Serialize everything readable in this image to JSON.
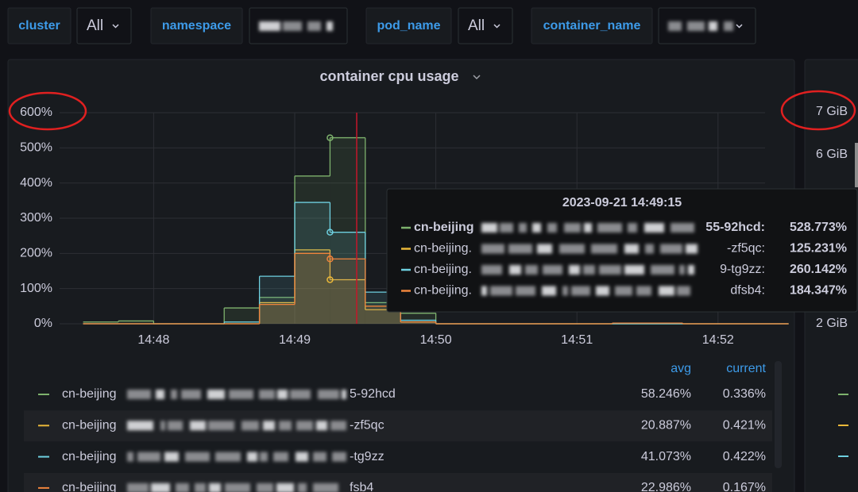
{
  "variables": [
    {
      "label": "cluster",
      "value": "All"
    },
    {
      "label": "namespace"
    },
    {
      "label": "pod_name",
      "value": "All"
    },
    {
      "label": "container_name"
    }
  ],
  "panel": {
    "title": "container cpu usage",
    "chart_data": {
      "type": "line",
      "step": true,
      "grid": true,
      "x": [
        "14:47:30",
        "14:47:45",
        "14:48:00",
        "14:48:15",
        "14:48:30",
        "14:48:45",
        "14:49:00",
        "14:49:15",
        "14:49:30",
        "14:49:45",
        "14:50:00",
        "14:50:15",
        "14:50:30",
        "14:50:45",
        "14:51:00",
        "14:51:15",
        "14:51:30",
        "14:51:45",
        "14:52:00",
        "14:52:15"
      ],
      "xlim": [
        "14:47:20",
        "14:52:20"
      ],
      "xticks": [
        "14:48",
        "14:49",
        "14:50",
        "14:51",
        "14:52"
      ],
      "ylim": [
        0,
        600
      ],
      "yticks": [
        {
          "value": 0,
          "label": "0%"
        },
        {
          "value": 100,
          "label": "100%"
        },
        {
          "value": 200,
          "label": "200%"
        },
        {
          "value": 300,
          "label": "300%"
        },
        {
          "value": 400,
          "label": "400%"
        },
        {
          "value": 500,
          "label": "500%"
        },
        {
          "value": 600,
          "label": "600%"
        }
      ],
      "series": [
        {
          "name": "cn-beijing",
          "suffix": "5-92hcd",
          "color": "#7eb26d",
          "values": [
            5,
            8,
            0,
            0,
            45,
            75,
            420,
            528.773,
            60,
            30,
            0,
            0,
            0,
            0,
            0,
            0,
            0,
            0,
            0,
            0
          ]
        },
        {
          "name": "cn-beijing",
          "suffix": "-zf5qc",
          "color": "#eab839",
          "values": [
            0,
            0,
            0,
            0,
            0,
            60,
            210,
            125.231,
            40,
            5,
            0,
            0,
            0,
            0,
            0,
            0,
            0,
            0,
            0,
            0
          ]
        },
        {
          "name": "cn-beijing",
          "suffix": "-tg9zz",
          "color": "#6ed0e0",
          "values": [
            0,
            0,
            0,
            0,
            5,
            135,
            345,
            260.142,
            90,
            10,
            0,
            0,
            0,
            0,
            0,
            0,
            0,
            0,
            0,
            0
          ]
        },
        {
          "name": "cn-beijing",
          "suffix": "fsb4",
          "color": "#ef843c",
          "values": [
            0,
            0,
            0,
            0,
            0,
            55,
            200,
            184.347,
            50,
            5,
            0,
            0,
            0,
            0,
            0,
            2,
            2,
            0,
            0,
            0
          ]
        }
      ]
    },
    "legend": {
      "columns": [
        "avg",
        "current"
      ],
      "rows": [
        {
          "avg": "58.246%",
          "current": "0.336%"
        },
        {
          "avg": "20.887%",
          "current": "0.421%"
        },
        {
          "avg": "41.073%",
          "current": "0.422%"
        },
        {
          "avg": "22.986%",
          "current": "0.167%"
        }
      ]
    },
    "tooltip": {
      "time": "2023-09-21 14:49:15",
      "rows": [
        {
          "name": "cn-beijing",
          "suffix": "55-92hcd:",
          "label": "528.773%"
        },
        {
          "name": "cn-beijing.",
          "suffix": "-zf5qc:",
          "label": "125.231%"
        },
        {
          "name": "cn-beijing.",
          "suffix": "9-tg9zz:",
          "label": "260.142%"
        },
        {
          "name": "cn-beijing.",
          "suffix": "dfsb4:",
          "label": "184.347%"
        }
      ]
    }
  },
  "right_panel": {
    "yticks": [
      "7 GiB",
      "6 GiB",
      "2 GiB"
    ]
  }
}
